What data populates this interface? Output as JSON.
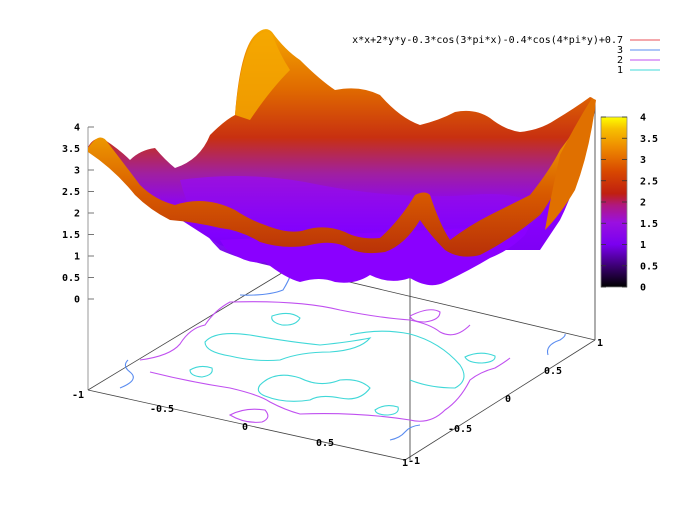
{
  "chart_data": {
    "type": "surface3d",
    "title": "",
    "function": "x*x+2*y*y-0.3*cos(3*pi*x)-0.4*cos(4*pi*y)+0.7",
    "xlabel": "",
    "ylabel": "",
    "zlabel": "",
    "xrange": [
      -1,
      1
    ],
    "yrange": [
      -1,
      1
    ],
    "zrange": [
      0,
      4
    ],
    "x_ticks": [
      "-1",
      "-0.5",
      "0",
      "0.5",
      "1"
    ],
    "y_ticks": [
      "-1",
      "-0.5",
      "0",
      "0.5",
      "1"
    ],
    "z_ticks": [
      "0",
      "0.5",
      "1",
      "1.5",
      "2",
      "2.5",
      "3",
      "3.5",
      "4"
    ],
    "colorbar": {
      "range": [
        0,
        4
      ],
      "ticks": [
        "0",
        "0.5",
        "1",
        "1.5",
        "2",
        "2.5",
        "3",
        "3.5",
        "4"
      ],
      "palette": [
        "#000000",
        "#4b0096",
        "#8a00ff",
        "#a21fd0",
        "#c0200a",
        "#d84a00",
        "#ee8a00",
        "#f7b800",
        "#ffff00"
      ]
    },
    "contour_levels": [
      1,
      2,
      3
    ],
    "legend": [
      {
        "label": "x*x+2*y*y-0.3*cos(3*pi*x)-0.4*cos(4*pi*y)+0.7",
        "color": "#e8505a"
      },
      {
        "label": "3",
        "color": "#5a8cf0"
      },
      {
        "label": "2",
        "color": "#c050f0"
      },
      {
        "label": "1",
        "color": "#40d8d8"
      }
    ],
    "grid": false,
    "legend_position": "top-right"
  }
}
